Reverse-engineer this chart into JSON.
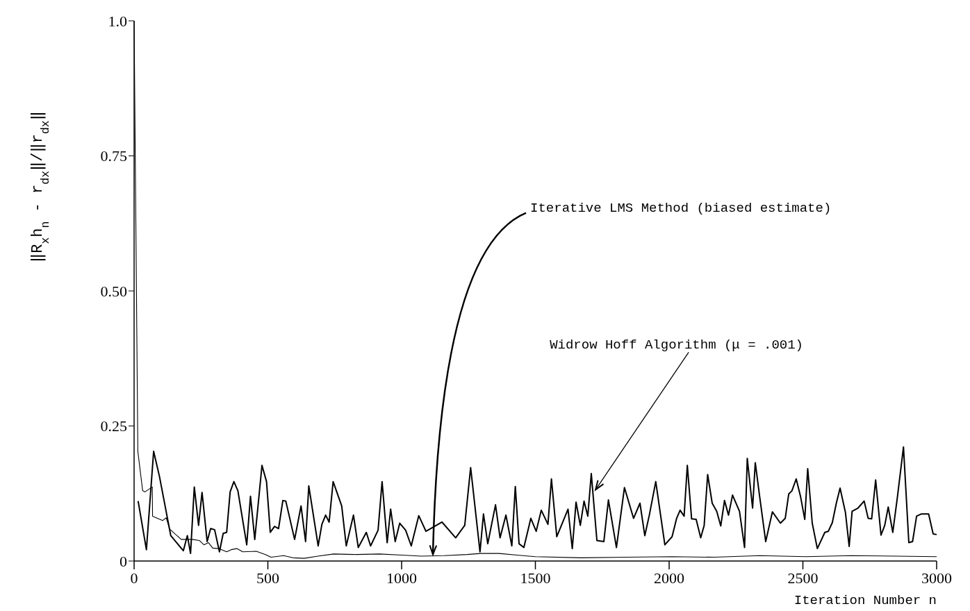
{
  "chart_data": {
    "type": "line",
    "xlabel": "Iteration Number n",
    "ylabel": "‖R$_{x}$h$_{n}$ - r$_{dx}$‖/‖r$_{dx}$‖",
    "xlim": [
      0,
      3000
    ],
    "xticks": [
      0,
      500,
      1000,
      1500,
      2000,
      2500,
      3000
    ],
    "ylim": [
      0,
      1
    ],
    "yticks": [
      0,
      {
        "value": 0.25,
        "label": "0.25"
      },
      {
        "value": 0.5,
        "label": "0.50"
      },
      0.75,
      {
        "value": 1,
        "label": "1.0"
      }
    ],
    "grid": false,
    "marker": "none",
    "line_style": "solid",
    "series": [
      {
        "color": "#000000",
        "x": [
          15,
          46,
          73,
          95,
          137,
          184,
          199,
          211,
          225,
          241,
          254,
          273,
          286,
          301,
          319,
          333,
          346,
          359,
          373,
          388,
          421,
          435,
          451,
          478,
          495,
          509,
          525,
          540,
          556,
          567,
          600,
          624,
          641,
          653,
          688,
          702,
          716,
          729,
          744,
          776,
          793,
          820,
          838,
          868,
          884,
          912,
          927,
          946,
          959,
          976,
          993,
          1015,
          1036,
          1064,
          1091,
          1151,
          1202,
          1236,
          1258,
          1293,
          1306,
          1322,
          1351,
          1368,
          1390,
          1412,
          1425,
          1439,
          1457,
          1483,
          1503,
          1522,
          1547,
          1560,
          1580,
          1622,
          1638,
          1652,
          1668,
          1682,
          1696,
          1709,
          1730,
          1756,
          1773,
          1803,
          1833,
          1867,
          1891,
          1909,
          1926,
          1950,
          1984,
          2011,
          2028,
          2041,
          2056,
          2068,
          2084,
          2101,
          2118,
          2131,
          2144,
          2161,
          2178,
          2193,
          2207,
          2222,
          2237,
          2263,
          2282,
          2292,
          2312,
          2322,
          2339,
          2361,
          2386,
          2416,
          2434,
          2447,
          2459,
          2475,
          2491,
          2507,
          2518,
          2535,
          2554,
          2582,
          2595,
          2610,
          2625,
          2639,
          2659,
          2673,
          2684,
          2706,
          2729,
          2744,
          2757,
          2772,
          2792,
          2806,
          2819,
          2836,
          2853,
          2876,
          2896,
          2910,
          2925,
          2942,
          2970,
          2987,
          3000
        ],
        "values": [
          0.111,
          0.021,
          0.203,
          0.156,
          0.047,
          0.019,
          0.047,
          0.014,
          0.137,
          0.066,
          0.127,
          0.036,
          0.06,
          0.058,
          0.017,
          0.051,
          0.053,
          0.128,
          0.147,
          0.13,
          0.03,
          0.12,
          0.04,
          0.177,
          0.147,
          0.053,
          0.064,
          0.06,
          0.112,
          0.111,
          0.04,
          0.102,
          0.036,
          0.139,
          0.028,
          0.068,
          0.085,
          0.072,
          0.147,
          0.102,
          0.028,
          0.085,
          0.025,
          0.053,
          0.028,
          0.057,
          0.147,
          0.034,
          0.096,
          0.036,
          0.07,
          0.057,
          0.028,
          0.084,
          0.055,
          0.072,
          0.043,
          0.066,
          0.173,
          0.017,
          0.087,
          0.032,
          0.104,
          0.043,
          0.085,
          0.028,
          0.138,
          0.032,
          0.025,
          0.079,
          0.055,
          0.094,
          0.068,
          0.152,
          0.045,
          0.096,
          0.023,
          0.109,
          0.066,
          0.111,
          0.083,
          0.162,
          0.038,
          0.036,
          0.113,
          0.025,
          0.136,
          0.079,
          0.107,
          0.047,
          0.085,
          0.147,
          0.03,
          0.045,
          0.079,
          0.094,
          0.083,
          0.177,
          0.078,
          0.077,
          0.043,
          0.066,
          0.16,
          0.107,
          0.092,
          0.065,
          0.112,
          0.085,
          0.122,
          0.092,
          0.025,
          0.19,
          0.098,
          0.182,
          0.117,
          0.036,
          0.091,
          0.07,
          0.079,
          0.124,
          0.13,
          0.152,
          0.12,
          0.077,
          0.171,
          0.07,
          0.023,
          0.053,
          0.055,
          0.071,
          0.107,
          0.135,
          0.09,
          0.027,
          0.092,
          0.098,
          0.111,
          0.079,
          0.078,
          0.15,
          0.048,
          0.066,
          0.1,
          0.053,
          0.117,
          0.211,
          0.034,
          0.036,
          0.083,
          0.087,
          0.087,
          0.05,
          0.049
        ]
      },
      {
        "color": "#000000",
        "x": [
          0,
          14,
          32,
          41,
          68,
          69,
          107,
          120,
          133,
          176,
          218,
          244,
          261,
          278,
          294,
          316,
          346,
          363,
          384,
          406,
          457,
          491,
          512,
          559,
          593,
          636,
          687,
          746,
          831,
          917,
          1002,
          1074,
          1159,
          1245,
          1296,
          1364,
          1432,
          1500,
          1670,
          1841,
          2011,
          2169,
          2339,
          2510,
          2680,
          2850,
          3000
        ],
        "values": [
          1.0,
          0.203,
          0.13,
          0.128,
          0.137,
          0.083,
          0.075,
          0.08,
          0.059,
          0.04,
          0.04,
          0.038,
          0.03,
          0.034,
          0.024,
          0.023,
          0.017,
          0.021,
          0.023,
          0.017,
          0.018,
          0.012,
          0.007,
          0.01,
          0.006,
          0.005,
          0.009,
          0.013,
          0.012,
          0.013,
          0.011,
          0.009,
          0.01,
          0.012,
          0.014,
          0.014,
          0.011,
          0.008,
          0.006,
          0.007,
          0.008,
          0.007,
          0.01,
          0.008,
          0.01,
          0.009,
          0.008
        ]
      }
    ],
    "annotations": [
      {
        "text": "Iterative LMS Method (biased estimate)",
        "x": 1117,
        "y": 0.012
      },
      {
        "text": "Widrow Hoff Algorithm (μ = .001)",
        "x": 1725,
        "y": 0.132
      }
    ]
  }
}
